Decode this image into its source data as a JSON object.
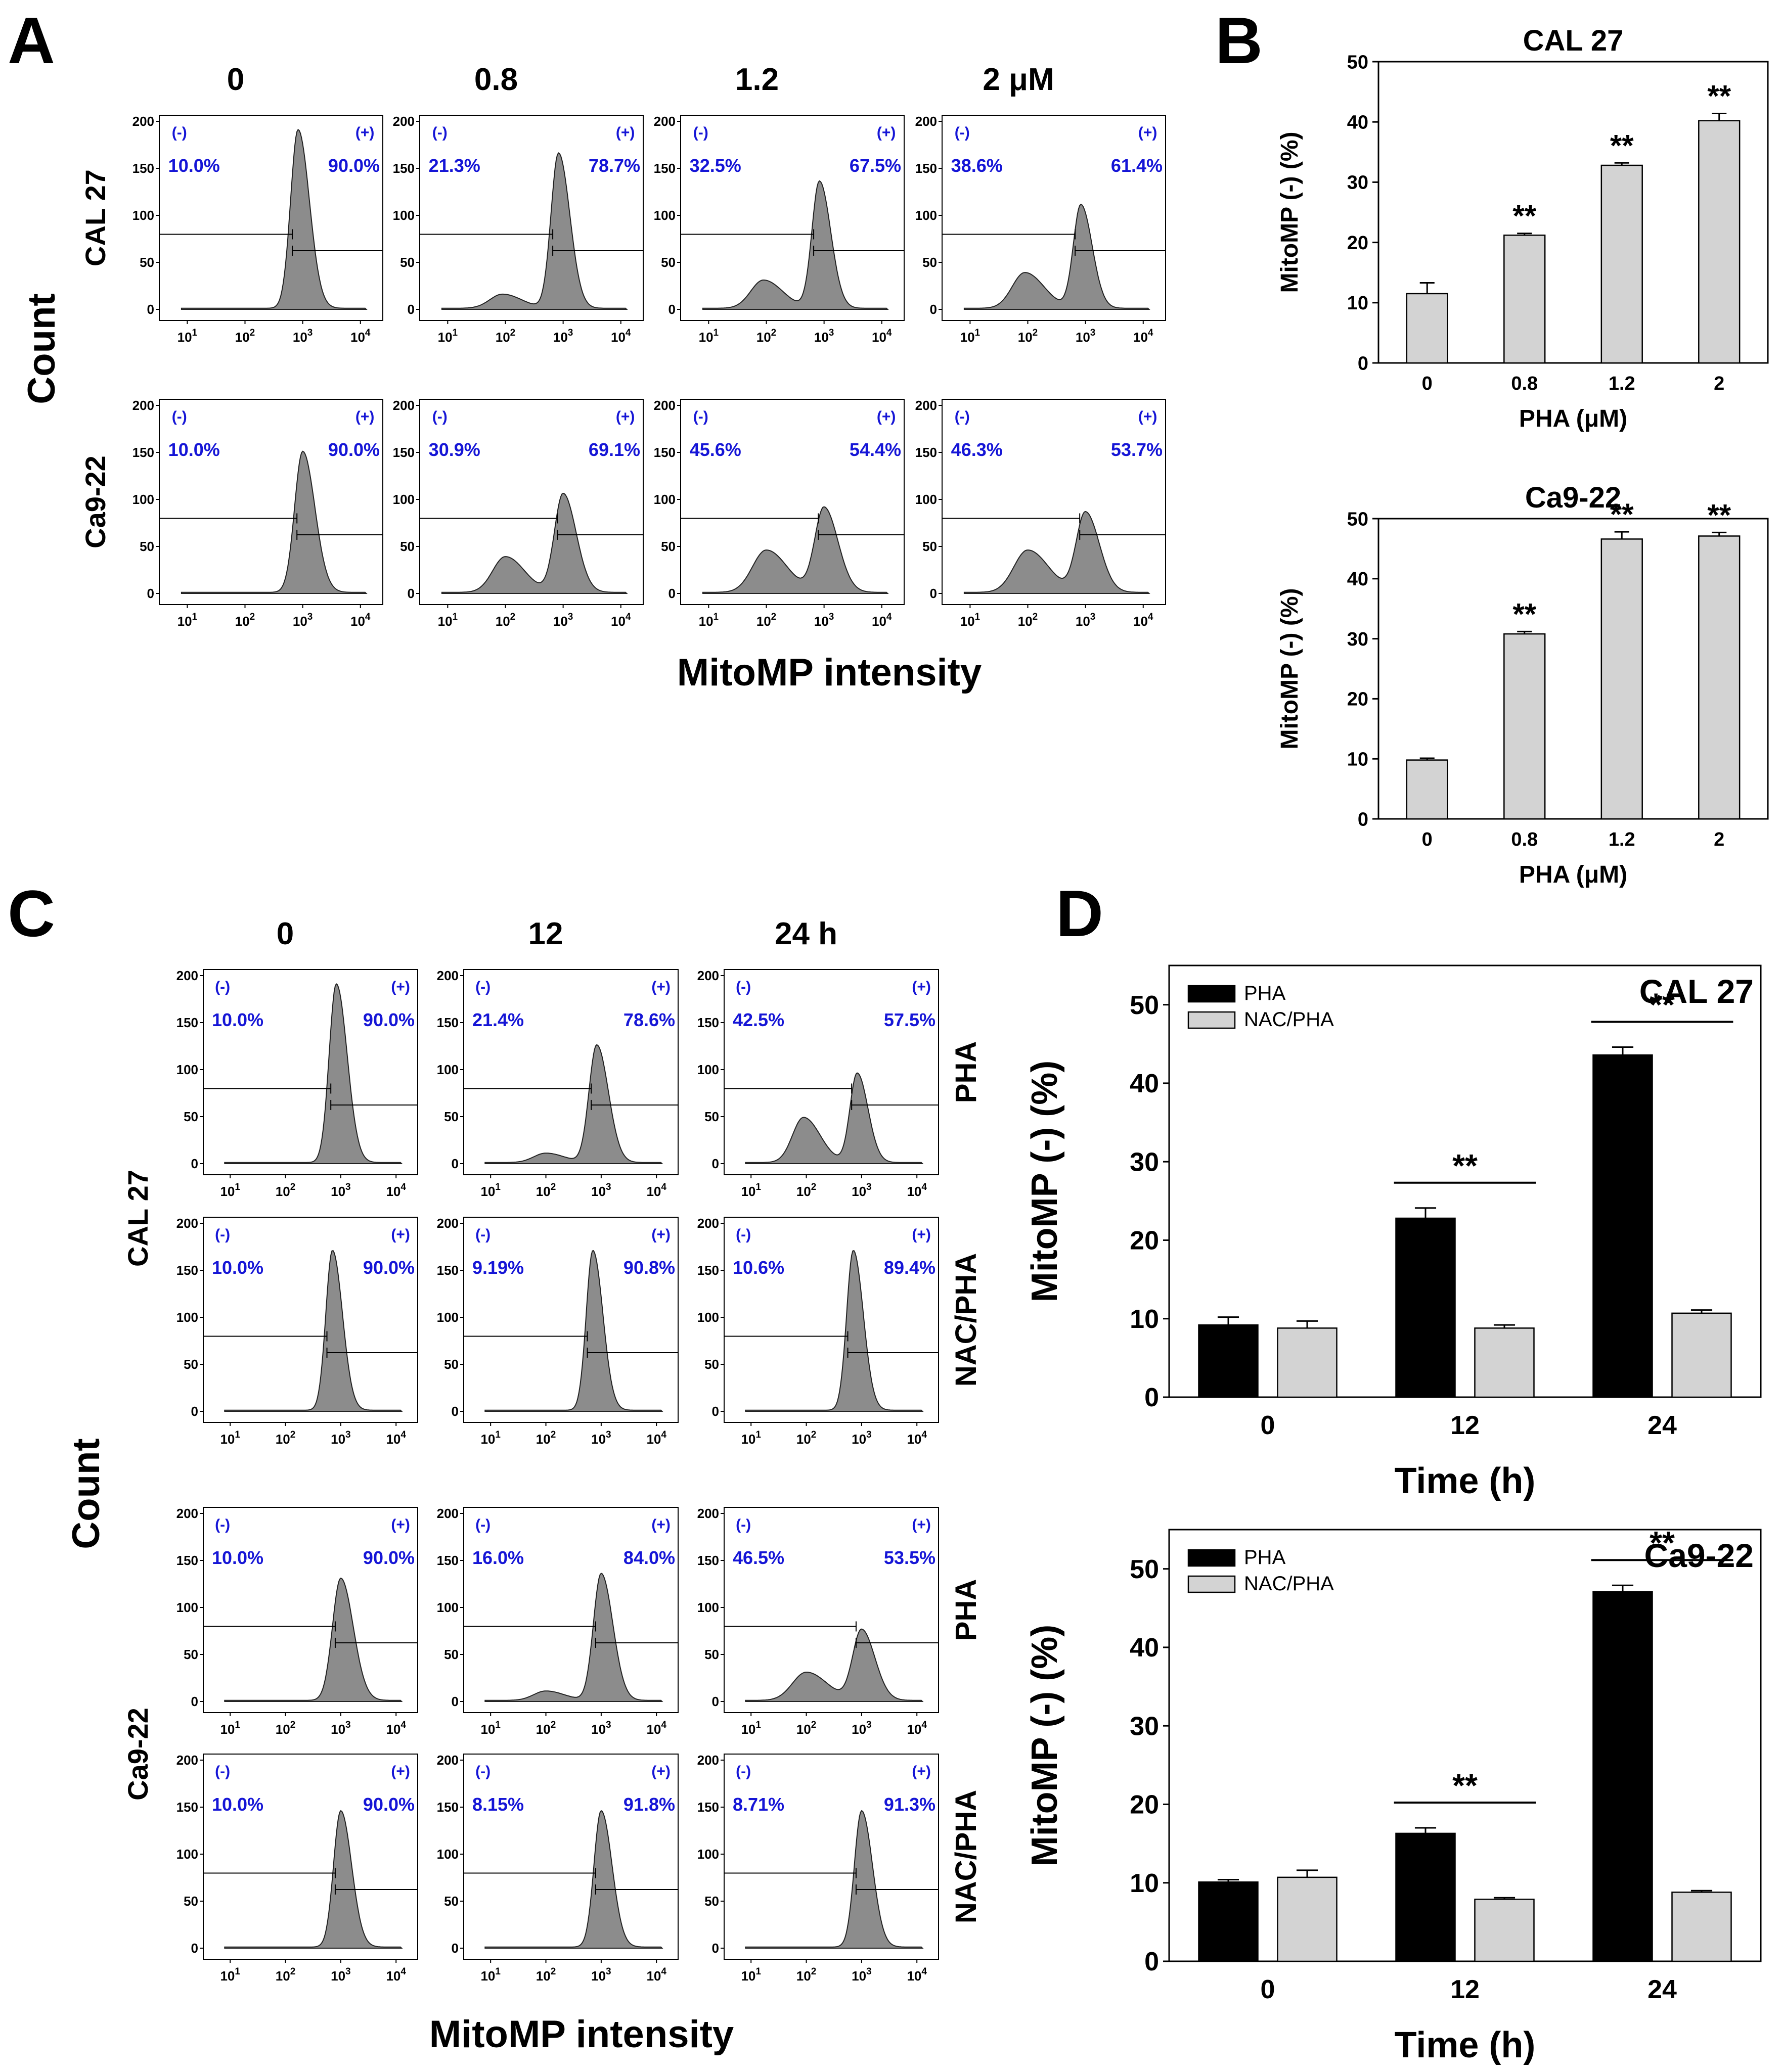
{
  "chart_data": [
    {
      "panel": "A",
      "type": "histogram-grid",
      "ylabel": "Count",
      "xlabel": "MitoMP intensity",
      "columns": [
        "0",
        "0.8",
        "1.2",
        "2 μM"
      ],
      "row_labels": [
        "CAL 27",
        "Ca9-22"
      ],
      "y_ticks": [
        "0",
        "50",
        "100",
        "150",
        "200"
      ],
      "x_ticks": [
        {
          "base": "10",
          "exp": "1"
        },
        {
          "base": "10",
          "exp": "2"
        },
        {
          "base": "10",
          "exp": "3"
        },
        {
          "base": "10",
          "exp": "4"
        }
      ],
      "gate_labels": {
        "neg": "(-)",
        "pos": "(+)"
      },
      "rows": [
        {
          "label": "CAL 27",
          "cells": [
            {
              "neg": "10.0%",
              "pos": "90.0%",
              "peaks": [
                {
                  "x": 2.92,
                  "h": 190,
                  "w": 0.13
                }
              ]
            },
            {
              "neg": "21.3%",
              "pos": "78.7%",
              "peaks": [
                {
                  "x": 1.95,
                  "h": 15,
                  "w": 0.22
                },
                {
                  "x": 2.92,
                  "h": 165,
                  "w": 0.13
                }
              ]
            },
            {
              "neg": "32.5%",
              "pos": "67.5%",
              "peaks": [
                {
                  "x": 1.95,
                  "h": 30,
                  "w": 0.22
                },
                {
                  "x": 2.92,
                  "h": 135,
                  "w": 0.13
                }
              ]
            },
            {
              "neg": "38.6%",
              "pos": "61.4%",
              "peaks": [
                {
                  "x": 1.95,
                  "h": 38,
                  "w": 0.22
                },
                {
                  "x": 2.92,
                  "h": 110,
                  "w": 0.13
                }
              ]
            }
          ]
        },
        {
          "label": "Ca9-22",
          "cells": [
            {
              "neg": "10.0%",
              "pos": "90.0%",
              "peaks": [
                {
                  "x": 3.0,
                  "h": 150,
                  "w": 0.14
                }
              ]
            },
            {
              "neg": "30.9%",
              "pos": "69.1%",
              "peaks": [
                {
                  "x": 2.0,
                  "h": 38,
                  "w": 0.22
                },
                {
                  "x": 3.0,
                  "h": 105,
                  "w": 0.15
                }
              ]
            },
            {
              "neg": "45.6%",
              "pos": "54.4%",
              "peaks": [
                {
                  "x": 2.0,
                  "h": 45,
                  "w": 0.24
                },
                {
                  "x": 3.0,
                  "h": 90,
                  "w": 0.16
                }
              ]
            },
            {
              "neg": "46.3%",
              "pos": "53.7%",
              "peaks": [
                {
                  "x": 2.0,
                  "h": 45,
                  "w": 0.24
                },
                {
                  "x": 3.0,
                  "h": 85,
                  "w": 0.16
                }
              ]
            }
          ]
        }
      ]
    },
    {
      "panel": "B",
      "type": "bar",
      "title": "CAL 27",
      "categories": [
        "0",
        "0.8",
        "1.2",
        "2"
      ],
      "values": [
        11.5,
        21.2,
        32.8,
        40.2
      ],
      "errors": [
        1.8,
        0.3,
        0.4,
        1.2
      ],
      "annotations": [
        "",
        "**",
        "**",
        "**"
      ],
      "xlabel": "PHA (μM)",
      "ylabel": "MitoMP (-) (%)",
      "ylim": [
        0,
        50
      ],
      "yticks": [
        0,
        10,
        20,
        30,
        40,
        50
      ]
    },
    {
      "panel": "B",
      "type": "bar",
      "title": "Ca9-22",
      "categories": [
        "0",
        "0.8",
        "1.2",
        "2"
      ],
      "values": [
        9.8,
        30.8,
        46.6,
        47.1
      ],
      "errors": [
        0.3,
        0.4,
        1.2,
        0.6
      ],
      "annotations": [
        "",
        "**",
        "**",
        "**"
      ],
      "xlabel": "PHA (μM)",
      "ylabel": "MitoMP (-) (%)",
      "ylim": [
        0,
        50
      ],
      "yticks": [
        0,
        10,
        20,
        30,
        40,
        50
      ]
    },
    {
      "panel": "C",
      "type": "histogram-grid",
      "ylabel": "Count",
      "xlabel": "MitoMP intensity",
      "columns": [
        "0",
        "12",
        "24 h"
      ],
      "cell_lines": [
        "CAL 27",
        "Ca9-22"
      ],
      "treatments": [
        "PHA",
        "NAC/PHA"
      ],
      "y_ticks": [
        "0",
        "50",
        "100",
        "150",
        "200"
      ],
      "x_ticks": [
        {
          "base": "10",
          "exp": "1"
        },
        {
          "base": "10",
          "exp": "2"
        },
        {
          "base": "10",
          "exp": "3"
        },
        {
          "base": "10",
          "exp": "4"
        }
      ],
      "gate_labels": {
        "neg": "(-)",
        "pos": "(+)"
      },
      "rows": [
        {
          "treatment": "PHA",
          "cells": [
            {
              "neg": "10.0%",
              "pos": "90.0%",
              "peaks": [
                {
                  "x": 2.92,
                  "h": 190,
                  "w": 0.13
                }
              ]
            },
            {
              "neg": "21.4%",
              "pos": "78.6%",
              "peaks": [
                {
                  "x": 2.0,
                  "h": 10,
                  "w": 0.22
                },
                {
                  "x": 2.92,
                  "h": 125,
                  "w": 0.14
                }
              ]
            },
            {
              "neg": "42.5%",
              "pos": "57.5%",
              "peaks": [
                {
                  "x": 1.95,
                  "h": 48,
                  "w": 0.2
                },
                {
                  "x": 2.92,
                  "h": 95,
                  "w": 0.13
                }
              ]
            }
          ]
        },
        {
          "treatment": "NAC/PHA",
          "cells": [
            {
              "neg": "10.0%",
              "pos": "90.0%",
              "peaks": [
                {
                  "x": 2.85,
                  "h": 170,
                  "w": 0.12
                }
              ]
            },
            {
              "neg": "9.19%",
              "pos": "90.8%",
              "peaks": [
                {
                  "x": 2.85,
                  "h": 170,
                  "w": 0.12
                }
              ]
            },
            {
              "neg": "10.6%",
              "pos": "89.4%",
              "peaks": [
                {
                  "x": 2.85,
                  "h": 170,
                  "w": 0.12
                }
              ]
            }
          ]
        },
        {
          "treatment": "PHA",
          "cells": [
            {
              "neg": "10.0%",
              "pos": "90.0%",
              "peaks": [
                {
                  "x": 3.0,
                  "h": 130,
                  "w": 0.15
                }
              ]
            },
            {
              "neg": "16.0%",
              "pos": "84.0%",
              "peaks": [
                {
                  "x": 2.0,
                  "h": 10,
                  "w": 0.22
                },
                {
                  "x": 3.0,
                  "h": 135,
                  "w": 0.14
                }
              ]
            },
            {
              "neg": "46.5%",
              "pos": "53.5%",
              "peaks": [
                {
                  "x": 2.0,
                  "h": 30,
                  "w": 0.25
                },
                {
                  "x": 3.0,
                  "h": 75,
                  "w": 0.16
                }
              ]
            }
          ]
        },
        {
          "treatment": "NAC/PHA",
          "cells": [
            {
              "neg": "10.0%",
              "pos": "90.0%",
              "peaks": [
                {
                  "x": 3.0,
                  "h": 145,
                  "w": 0.13
                }
              ]
            },
            {
              "neg": "8.15%",
              "pos": "91.8%",
              "peaks": [
                {
                  "x": 3.0,
                  "h": 145,
                  "w": 0.13
                }
              ]
            },
            {
              "neg": "8.71%",
              "pos": "91.3%",
              "peaks": [
                {
                  "x": 3.0,
                  "h": 145,
                  "w": 0.13
                }
              ]
            }
          ]
        }
      ]
    },
    {
      "panel": "D",
      "type": "bar",
      "title": "CAL 27",
      "categories": [
        "0",
        "12",
        "24"
      ],
      "series": [
        {
          "name": "PHA",
          "color": "#000000",
          "values": [
            9.2,
            22.8,
            43.6
          ],
          "errors": [
            1.0,
            1.3,
            1.0
          ]
        },
        {
          "name": "NAC/PHA",
          "color": "#d3d3d3",
          "values": [
            8.8,
            8.8,
            10.7
          ],
          "errors": [
            0.9,
            0.4,
            0.4
          ]
        }
      ],
      "significance": [
        {
          "category": "12",
          "label": "**"
        },
        {
          "category": "24",
          "label": "**"
        }
      ],
      "xlabel": "Time (h)",
      "ylabel": "MitoMP (-) (%)",
      "ylim": [
        0,
        55
      ],
      "yticks": [
        0,
        10,
        20,
        30,
        40,
        50
      ],
      "legend": "top-left"
    },
    {
      "panel": "D",
      "type": "bar",
      "title": "Ca9-22",
      "categories": [
        "0",
        "12",
        "24"
      ],
      "series": [
        {
          "name": "PHA",
          "color": "#000000",
          "values": [
            10.1,
            16.3,
            47.1
          ],
          "errors": [
            0.3,
            0.7,
            0.8
          ]
        },
        {
          "name": "NAC/PHA",
          "color": "#d3d3d3",
          "values": [
            10.7,
            7.9,
            8.8
          ],
          "errors": [
            0.9,
            0.2,
            0.2
          ]
        }
      ],
      "significance": [
        {
          "category": "12",
          "label": "**"
        },
        {
          "category": "24",
          "label": "**"
        }
      ],
      "xlabel": "Time (h)",
      "ylabel": "MitoMP (-) (%)",
      "ylim": [
        0,
        55
      ],
      "yticks": [
        0,
        10,
        20,
        30,
        40,
        50
      ],
      "legend": "top-left"
    }
  ],
  "panel_labels": [
    "A",
    "B",
    "C",
    "D"
  ],
  "colors": {
    "gate_text": "#1515d6",
    "histogram_fill": "#8c8c8c",
    "bar_light": "#d3d3d3",
    "bar_dark": "#000000"
  }
}
